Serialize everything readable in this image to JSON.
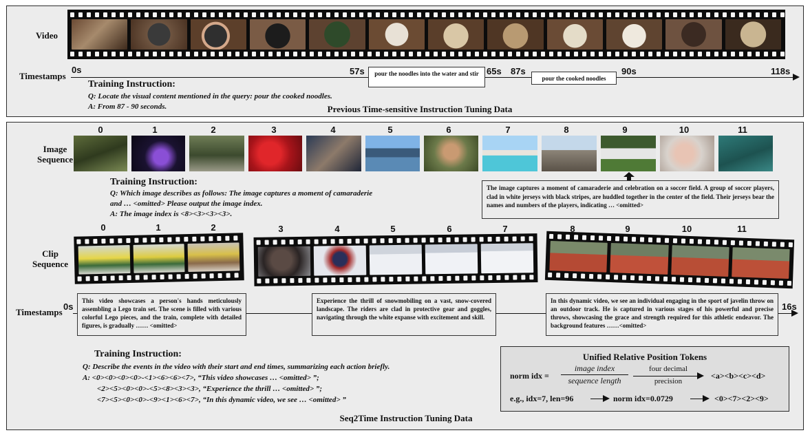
{
  "top": {
    "video_label": "Video",
    "timestamps_label": "Timestamps",
    "ticks": [
      "0s",
      "57s",
      "65s",
      "87s",
      "90s",
      "118s"
    ],
    "event1": "pour the noodles into the water and stir",
    "event2": "pour the cooked noodles",
    "ti_title": "Training Instruction:",
    "ti_q": "Q: Locate the visual content mentioned in the query: pour the cooked noodles.",
    "ti_a": "A: From 87 - 90 seconds.",
    "footer": "Previous Time-sensitive Instruction Tuning Data"
  },
  "image_seq": {
    "label": "Image Sequence",
    "indices": [
      "0",
      "1",
      "2",
      "3",
      "4",
      "5",
      "6",
      "7",
      "8",
      "9",
      "10",
      "11"
    ],
    "ti_title": "Training Instruction:",
    "ti_q1": "Q: Which image describes as follows: The image captures a moment of camaraderie",
    "ti_q2": "and …  <omitted> Please output the image index.",
    "ti_a": "A: The image index is <8><3><3><3>.",
    "caption": "The image captures a moment of camaraderie and celebration on a soccer field. A group of soccer players, clad in white jerseys with black stripes, are huddled together in the center of the field. Their jerseys bear the names and numbers of the players, indicating … <omitted>"
  },
  "clip_seq": {
    "label": "Clip Sequence",
    "indices": [
      "0",
      "1",
      "2",
      "3",
      "4",
      "5",
      "6",
      "7",
      "8",
      "9",
      "10",
      "11"
    ],
    "timestamps_label": "Timestamps",
    "t_start": "0s",
    "t_end": "16s",
    "caption1": "This video showcases a person's hands meticulously assembling a Lego train set. The scene is filled with various colorful Lego pieces, and the train, complete with detailed figures, is gradually …… <omitted>",
    "caption2": "Experience the thrill of snowmobiling on a vast, snow-covered landscape. The riders are clad in protective gear and goggles, navigating through the white expanse with excitement and skill.",
    "caption3": "In this dynamic video, we see an individual engaging in the sport of javelin throw on an outdoor track. He is captured in various stages of his powerful and precise throws, showcasing the grace and strength required for this athletic endeavor. The background features ……<omitted>",
    "ti_title": "Training Instruction:",
    "ti_q": "Q: Describe the events in the video with their start and end times, summarizing each action briefly.",
    "ti_a1": "A:  <0><0><0><0>-<1><6><6><7>, “This video showcases … <omitted> ”;",
    "ti_a2": "<2><5><0><0>-<5><8><3><3>, “Experience the thrill … <omitted> ”;",
    "ti_a3": "<7><5><0><0>-<9><1><6><7>, “In this dynamic video, we see … <omitted> ”",
    "footer": "Seq2Time Instruction Tuning Data"
  },
  "formula": {
    "title": "Unified Relative Position Tokens",
    "lhs": "norm idx =",
    "frac_num": "image index",
    "frac_den": "sequence length",
    "arrow_top": "four decimal",
    "arrow_bot": "precision",
    "tokens": "<a><b><c><d>",
    "example_lhs": "e.g., idx=7, len=96",
    "example_mid": "norm idx=0.0729",
    "example_tokens": "<0><7><2><9>"
  },
  "colors": {
    "panel": "#ececec",
    "film": "#0c0c0c",
    "formula_bg": "#dedede"
  }
}
